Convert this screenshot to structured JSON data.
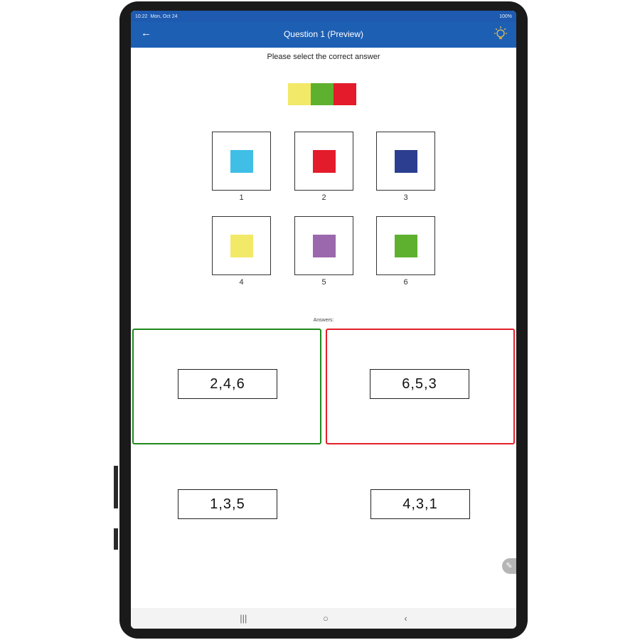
{
  "status": {
    "time": "10:22",
    "date": "Mon, Oct 24",
    "battery": "100%"
  },
  "header": {
    "title": "Question 1 (Preview)",
    "back_icon": "arrow-left",
    "hint_icon": "lightbulb"
  },
  "prompt": "Please select the correct answer",
  "sequence_colors": [
    "#f2e968",
    "#5db12f",
    "#e31b2b"
  ],
  "options": [
    {
      "label": "1",
      "color": "#3fbfe6"
    },
    {
      "label": "2",
      "color": "#e31b2b"
    },
    {
      "label": "3",
      "color": "#2b3e8f"
    },
    {
      "label": "4",
      "color": "#f2e968"
    },
    {
      "label": "5",
      "color": "#9b68ad"
    },
    {
      "label": "6",
      "color": "#5db12f"
    }
  ],
  "answers_label": "Answers:",
  "answers": [
    {
      "text": "2,4,6",
      "state": "correct",
      "border": "#1e8a1e"
    },
    {
      "text": "6,5,3",
      "state": "incorrect",
      "border": "#e3202a"
    },
    {
      "text": "1,3,5",
      "state": "none"
    },
    {
      "text": "4,3,1",
      "state": "none"
    }
  ],
  "nav": {
    "recent": "|||",
    "home": "○",
    "back": "‹"
  }
}
